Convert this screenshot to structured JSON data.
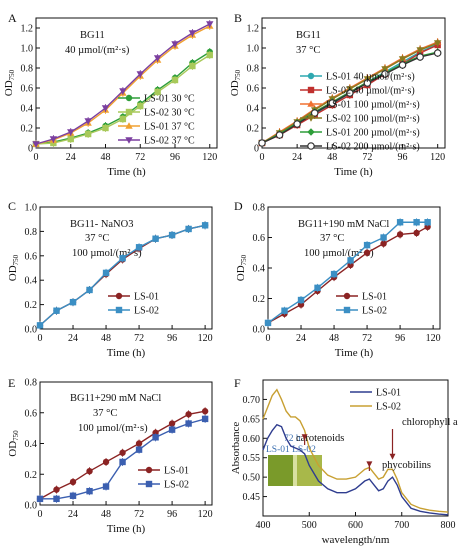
{
  "chart_data": [
    {
      "panel": "A",
      "type": "line",
      "annotation": [
        "BG11",
        "40 µmol/(m²·s)"
      ],
      "xlabel": "Time (h)",
      "ylabel": "OD750",
      "xlim": [
        0,
        125
      ],
      "ylim": [
        0,
        1.3
      ],
      "xticks": [
        0,
        24,
        48,
        72,
        96,
        120
      ],
      "yticks": [
        0,
        0.2,
        0.4,
        0.6,
        0.8,
        1.0,
        1.2
      ],
      "ytick_labels": [
        "0",
        "0.2",
        "0.4",
        "0.6",
        "0.8",
        "1.0",
        "1.2"
      ],
      "legend": "bottom-right",
      "series": [
        {
          "name": "LS-01 30 °C",
          "color": "#2e9e3a",
          "marker": "circle",
          "x": [
            0,
            12,
            24,
            36,
            48,
            60,
            72,
            84,
            96,
            108,
            120
          ],
          "y": [
            0.04,
            0.06,
            0.1,
            0.15,
            0.22,
            0.31,
            0.44,
            0.58,
            0.7,
            0.85,
            0.96
          ]
        },
        {
          "name": "LS-02 30 °C",
          "color": "#a8c95a",
          "marker": "square",
          "x": [
            0,
            12,
            24,
            36,
            48,
            60,
            72,
            84,
            96,
            108,
            120
          ],
          "y": [
            0.04,
            0.05,
            0.09,
            0.14,
            0.2,
            0.29,
            0.42,
            0.56,
            0.68,
            0.82,
            0.93
          ]
        },
        {
          "name": "LS-01 37 °C",
          "color": "#f0a030",
          "marker": "triangle",
          "x": [
            0,
            12,
            24,
            36,
            48,
            60,
            72,
            84,
            96,
            108,
            120
          ],
          "y": [
            0.04,
            0.08,
            0.15,
            0.25,
            0.38,
            0.55,
            0.72,
            0.88,
            1.02,
            1.13,
            1.22
          ]
        },
        {
          "name": "LS-02 37 °C",
          "color": "#7b3fa0",
          "marker": "triangle-down",
          "x": [
            0,
            12,
            24,
            36,
            48,
            60,
            72,
            84,
            96,
            108,
            120
          ],
          "y": [
            0.04,
            0.09,
            0.16,
            0.27,
            0.4,
            0.57,
            0.74,
            0.9,
            1.04,
            1.15,
            1.24
          ]
        }
      ]
    },
    {
      "panel": "B",
      "type": "line",
      "annotation": [
        "BG11",
        "37 °C"
      ],
      "xlabel": "Time (h)",
      "ylabel": "OD750",
      "xlim": [
        0,
        125
      ],
      "ylim": [
        0,
        1.3
      ],
      "xticks": [
        0,
        24,
        48,
        72,
        96,
        120
      ],
      "yticks": [
        0,
        0.2,
        0.4,
        0.6,
        0.8,
        1.0,
        1.2
      ],
      "ytick_labels": [
        "0",
        "0.2",
        "0.4",
        "0.6",
        "0.8",
        "1.0",
        "1.2"
      ],
      "legend": "bottom-right",
      "series": [
        {
          "name": "LS-01 40 µmol/(m²·s)",
          "color": "#2ea8b0",
          "marker": "circle",
          "x": [
            0,
            12,
            24,
            36,
            48,
            60,
            72,
            84,
            96,
            108,
            120
          ],
          "y": [
            0.05,
            0.14,
            0.24,
            0.34,
            0.44,
            0.55,
            0.66,
            0.76,
            0.86,
            0.96,
            1.04
          ]
        },
        {
          "name": "LS-02 40 µmol/(m²·s)",
          "color": "#c0302e",
          "marker": "square",
          "x": [
            0,
            12,
            24,
            36,
            48,
            60,
            72,
            84,
            96,
            108,
            120
          ],
          "y": [
            0.05,
            0.13,
            0.23,
            0.33,
            0.43,
            0.53,
            0.63,
            0.74,
            0.84,
            0.95,
            1.03
          ]
        },
        {
          "name": "LS-01 100 µmol/(m²·s)",
          "color": "#f07030",
          "marker": "triangle",
          "x": [
            0,
            12,
            24,
            36,
            48,
            60,
            72,
            84,
            96,
            108,
            120
          ],
          "y": [
            0.05,
            0.16,
            0.27,
            0.39,
            0.5,
            0.6,
            0.7,
            0.8,
            0.9,
            0.99,
            1.06
          ]
        },
        {
          "name": "LS-02 100 µmol/(m²·s)",
          "color": "#8a7a20",
          "marker": "triangle-down",
          "x": [
            0,
            12,
            24,
            36,
            48,
            60,
            72,
            84,
            96,
            108,
            120
          ],
          "y": [
            0.05,
            0.15,
            0.26,
            0.38,
            0.49,
            0.59,
            0.69,
            0.79,
            0.89,
            0.98,
            1.05
          ]
        },
        {
          "name": "LS-01 200 µmol/(m²·s)",
          "color": "#2e9e3a",
          "marker": "diamond",
          "x": [
            0,
            12,
            24,
            36,
            48,
            60,
            72,
            84,
            96,
            108,
            120
          ],
          "y": [
            0.05,
            0.14,
            0.25,
            0.36,
            0.46,
            0.56,
            0.66,
            0.75,
            0.84,
            0.92,
            0.96
          ]
        },
        {
          "name": "LS-02 200 µmol/(m²·s)",
          "color": "#333333",
          "marker": "circle-open",
          "x": [
            0,
            12,
            24,
            36,
            48,
            60,
            72,
            84,
            96,
            108,
            120
          ],
          "y": [
            0.05,
            0.13,
            0.24,
            0.35,
            0.45,
            0.55,
            0.65,
            0.74,
            0.83,
            0.91,
            0.95
          ]
        }
      ]
    },
    {
      "panel": "C",
      "type": "line",
      "annotation": [
        "BG11- NaNO3",
        "37 °C",
        "100 µmol/(m²·s)"
      ],
      "xlabel": "Time (h)",
      "ylabel": "OD750",
      "xlim": [
        0,
        125
      ],
      "ylim": [
        0,
        1.0
      ],
      "xticks": [
        0,
        24,
        48,
        72,
        96,
        120
      ],
      "yticks": [
        0,
        0.2,
        0.4,
        0.6,
        0.8,
        1.0
      ],
      "ytick_labels": [
        "0.0",
        "0.2",
        "0.4",
        "0.6",
        "0.8",
        "1.0"
      ],
      "legend": "bottom-center",
      "series": [
        {
          "name": "LS-01",
          "color": "#8b2323",
          "marker": "circle",
          "x": [
            0,
            12,
            24,
            36,
            48,
            60,
            72,
            84,
            96,
            108,
            120
          ],
          "y": [
            0.03,
            0.15,
            0.22,
            0.32,
            0.45,
            0.57,
            0.66,
            0.74,
            0.77,
            0.82,
            0.85
          ]
        },
        {
          "name": "LS-02",
          "color": "#3b8fc4",
          "marker": "square",
          "x": [
            0,
            12,
            24,
            36,
            48,
            60,
            72,
            84,
            96,
            108,
            120
          ],
          "y": [
            0.03,
            0.15,
            0.22,
            0.32,
            0.46,
            0.58,
            0.67,
            0.74,
            0.77,
            0.82,
            0.85
          ]
        }
      ]
    },
    {
      "panel": "D",
      "type": "line",
      "annotation": [
        "BG11+190 mM NaCl",
        "37 °C",
        "100 µmol/(m²·s)"
      ],
      "xlabel": "Time (h)",
      "ylabel": "OD750",
      "xlim": [
        0,
        125
      ],
      "ylim": [
        0,
        0.8
      ],
      "xticks": [
        0,
        24,
        48,
        72,
        96,
        120
      ],
      "yticks": [
        0,
        0.2,
        0.4,
        0.6,
        0.8
      ],
      "ytick_labels": [
        "0.0",
        "0.2",
        "0.4",
        "0.6",
        "0.8"
      ],
      "legend": "bottom-center",
      "series": [
        {
          "name": "LS-01",
          "color": "#8b2323",
          "marker": "circle",
          "x": [
            0,
            12,
            24,
            36,
            48,
            60,
            72,
            84,
            96,
            108,
            116
          ],
          "y": [
            0.04,
            0.1,
            0.16,
            0.25,
            0.34,
            0.42,
            0.5,
            0.56,
            0.62,
            0.63,
            0.67
          ]
        },
        {
          "name": "LS-02",
          "color": "#3b8fc4",
          "marker": "square",
          "x": [
            0,
            12,
            24,
            36,
            48,
            60,
            72,
            84,
            96,
            108,
            116
          ],
          "y": [
            0.04,
            0.12,
            0.19,
            0.27,
            0.36,
            0.45,
            0.55,
            0.6,
            0.7,
            0.7,
            0.7
          ]
        }
      ]
    },
    {
      "panel": "E",
      "type": "line",
      "annotation": [
        "BG11+290 mM NaCl",
        "37 °C",
        "100 µmol/(m²·s)"
      ],
      "xlabel": "Time (h)",
      "ylabel": "OD750",
      "xlim": [
        0,
        125
      ],
      "ylim": [
        0,
        0.8
      ],
      "xticks": [
        0,
        24,
        48,
        72,
        96,
        120
      ],
      "yticks": [
        0,
        0.2,
        0.4,
        0.6,
        0.8
      ],
      "ytick_labels": [
        "0.0",
        "0.2",
        "0.4",
        "0.6",
        "0.8"
      ],
      "legend": "bottom-right",
      "series": [
        {
          "name": "LS-01",
          "color": "#8b2323",
          "marker": "circle",
          "x": [
            0,
            12,
            24,
            36,
            48,
            60,
            72,
            84,
            96,
            108,
            120
          ],
          "y": [
            0.04,
            0.1,
            0.15,
            0.22,
            0.28,
            0.34,
            0.4,
            0.47,
            0.53,
            0.59,
            0.61
          ]
        },
        {
          "name": "LS-02",
          "color": "#3b5fb0",
          "marker": "square",
          "x": [
            0,
            12,
            24,
            36,
            48,
            60,
            72,
            84,
            96,
            108,
            120
          ],
          "y": [
            0.04,
            0.04,
            0.06,
            0.09,
            0.12,
            0.28,
            0.36,
            0.44,
            0.49,
            0.53,
            0.56
          ]
        }
      ]
    },
    {
      "panel": "F",
      "type": "line",
      "xlabel": "wavelength/nm",
      "ylabel": "Absorbance",
      "xlim": [
        400,
        800
      ],
      "ylim": [
        0.4,
        0.75
      ],
      "xticks": [
        400,
        500,
        600,
        700,
        800
      ],
      "yticks": [
        0.45,
        0.5,
        0.55,
        0.6,
        0.65,
        0.7
      ],
      "ytick_labels": [
        "0.45",
        "0.50",
        "0.55",
        "0.60",
        "0.65",
        "0.70"
      ],
      "legend": "top-right",
      "annotations": [
        "carotenoids",
        "phycobilins",
        "chlorophyll a"
      ],
      "inset_labels": [
        "72 h",
        "LS-01 LS-02"
      ],
      "series": [
        {
          "name": "LS-01",
          "color": "#2f3d8f",
          "x": [
            400,
            410,
            420,
            430,
            440,
            450,
            460,
            470,
            480,
            490,
            500,
            520,
            540,
            560,
            580,
            600,
            610,
            620,
            630,
            640,
            650,
            660,
            670,
            680,
            690,
            700,
            720,
            740,
            760,
            780,
            800
          ],
          "y": [
            0.57,
            0.6,
            0.62,
            0.635,
            0.63,
            0.6,
            0.58,
            0.575,
            0.57,
            0.56,
            0.53,
            0.49,
            0.47,
            0.46,
            0.46,
            0.47,
            0.48,
            0.49,
            0.495,
            0.48,
            0.465,
            0.47,
            0.49,
            0.5,
            0.48,
            0.45,
            0.42,
            0.412,
            0.408,
            0.405,
            0.403
          ]
        },
        {
          "name": "LS-02",
          "color": "#c8a032",
          "x": [
            400,
            410,
            420,
            430,
            440,
            450,
            460,
            470,
            480,
            490,
            500,
            520,
            540,
            560,
            580,
            600,
            610,
            620,
            630,
            640,
            650,
            660,
            670,
            680,
            690,
            700,
            720,
            740,
            760,
            780,
            800
          ],
          "y": [
            0.65,
            0.68,
            0.71,
            0.725,
            0.7,
            0.67,
            0.655,
            0.655,
            0.645,
            0.62,
            0.575,
            0.53,
            0.505,
            0.495,
            0.495,
            0.5,
            0.51,
            0.52,
            0.525,
            0.51,
            0.495,
            0.5,
            0.52,
            0.52,
            0.495,
            0.46,
            0.43,
            0.42,
            0.415,
            0.412,
            0.41
          ]
        }
      ]
    }
  ]
}
